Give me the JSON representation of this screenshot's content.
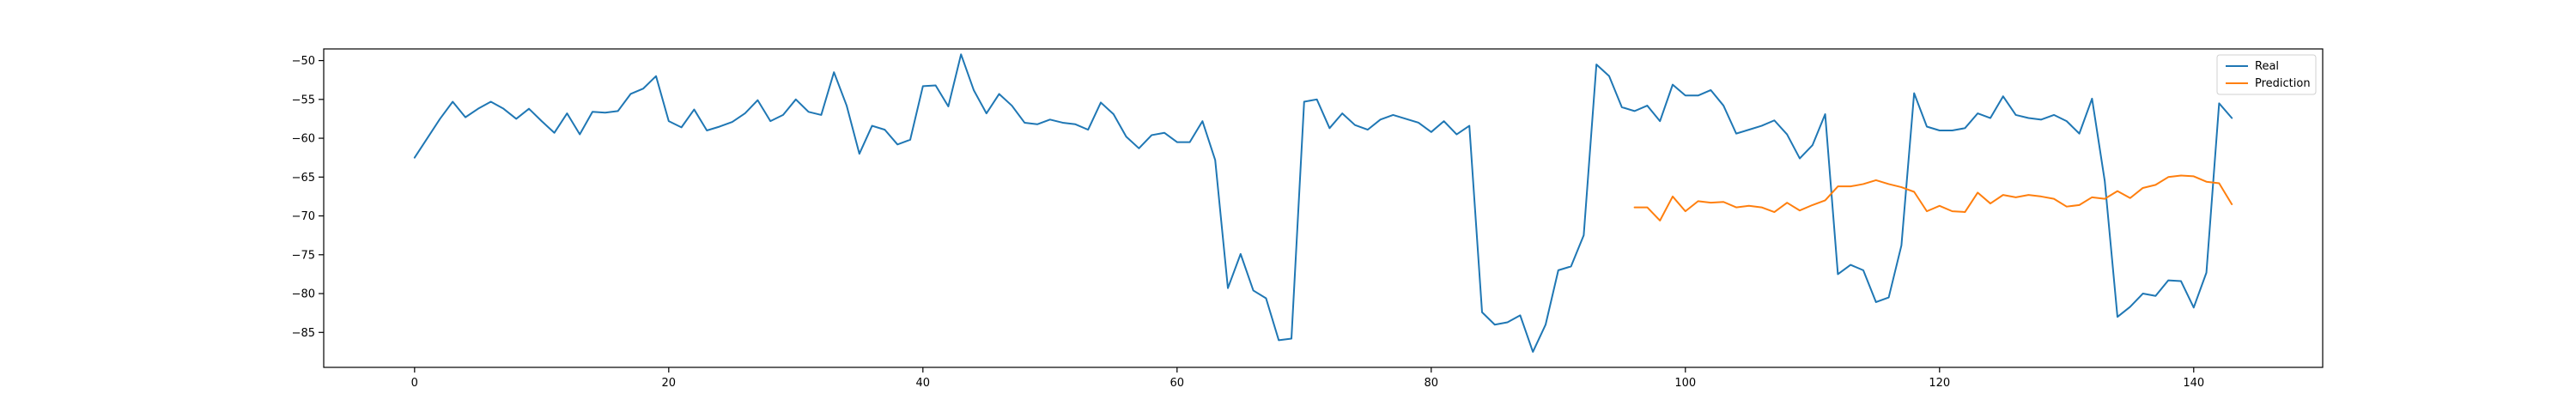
{
  "chart_data": {
    "type": "line",
    "title": "",
    "xlabel": "",
    "ylabel": "",
    "xlim": [
      -7.15,
      150.15
    ],
    "ylim": [
      -89.5,
      -48.5
    ],
    "x_ticks": [
      0,
      20,
      40,
      60,
      80,
      100,
      120,
      140
    ],
    "y_ticks": [
      -85,
      -80,
      -75,
      -70,
      -65,
      -60,
      -55,
      -50
    ],
    "grid": false,
    "legend": {
      "position": "top-right",
      "entries": [
        "Real",
        "Prediction"
      ]
    },
    "series": [
      {
        "name": "Real",
        "color": "#1f77b4",
        "x_start": 0,
        "values": [
          -62.5,
          -60.0,
          -57.5,
          -55.3,
          -57.3,
          -56.2,
          -55.3,
          -56.2,
          -57.5,
          -56.2,
          -57.8,
          -59.3,
          -56.8,
          -59.5,
          -56.6,
          -56.7,
          -56.5,
          -54.3,
          -53.6,
          -52.0,
          -57.8,
          -58.6,
          -56.3,
          -59.0,
          -58.5,
          -57.9,
          -56.8,
          -55.1,
          -57.8,
          -57.0,
          -55.0,
          -56.6,
          -57.0,
          -51.5,
          -55.8,
          -62.0,
          -58.4,
          -58.9,
          -60.8,
          -60.2,
          -53.3,
          -53.2,
          -55.9,
          -49.2,
          -53.8,
          -56.8,
          -54.3,
          -55.8,
          -58.0,
          -58.2,
          -57.6,
          -58.0,
          -58.2,
          -58.9,
          -55.4,
          -56.9,
          -59.8,
          -61.3,
          -59.6,
          -59.3,
          -60.5,
          -60.5,
          -57.8,
          -62.8,
          -79.3,
          -74.9,
          -79.6,
          -80.6,
          -86.0,
          -85.8,
          -55.3,
          -55.0,
          -58.7,
          -56.8,
          -58.3,
          -58.9,
          -57.6,
          -57.0,
          -57.5,
          -58.0,
          -59.2,
          -57.8,
          -59.5,
          -58.4,
          -82.4,
          -84.0,
          -83.7,
          -82.8,
          -87.5,
          -84.0,
          -77.0,
          -76.5,
          -72.5,
          -50.5,
          -52.0,
          -56.0,
          -56.5,
          -55.8,
          -57.8,
          -53.1,
          -54.5,
          -54.5,
          -53.8,
          -55.8,
          -59.4,
          -58.9,
          -58.4,
          -57.7,
          -59.5,
          -62.6,
          -60.9,
          -56.9,
          -77.5,
          -76.3,
          -77.0,
          -81.1,
          -80.5,
          -73.8,
          -54.2,
          -58.5,
          -59.0,
          -59.0,
          -58.7,
          -56.8,
          -57.4,
          -54.6,
          -57.0,
          -57.4,
          -57.6,
          -57.0,
          -57.8,
          -59.4,
          -54.9,
          -65.5,
          -83.0,
          -81.7,
          -80.0,
          -80.3,
          -78.3,
          -78.4,
          -81.8,
          -77.3,
          -55.5,
          -57.4
        ]
      },
      {
        "name": "Prediction",
        "color": "#ff7f0e",
        "x_start": 96,
        "values": [
          -68.9,
          -68.9,
          -70.6,
          -67.5,
          -69.4,
          -68.1,
          -68.3,
          -68.2,
          -68.9,
          -68.7,
          -68.9,
          -69.5,
          -68.3,
          -69.3,
          -68.6,
          -68.0,
          -66.2,
          -66.2,
          -65.9,
          -65.4,
          -65.9,
          -66.3,
          -66.9,
          -69.4,
          -68.7,
          -69.4,
          -69.5,
          -67.0,
          -68.4,
          -67.3,
          -67.6,
          -67.3,
          -67.5,
          -67.8,
          -68.8,
          -68.6,
          -67.6,
          -67.8,
          -66.8,
          -67.7,
          -66.4,
          -66.0,
          -65.0,
          -64.8,
          -64.9,
          -65.6,
          -65.8,
          -68.5
        ]
      }
    ]
  }
}
